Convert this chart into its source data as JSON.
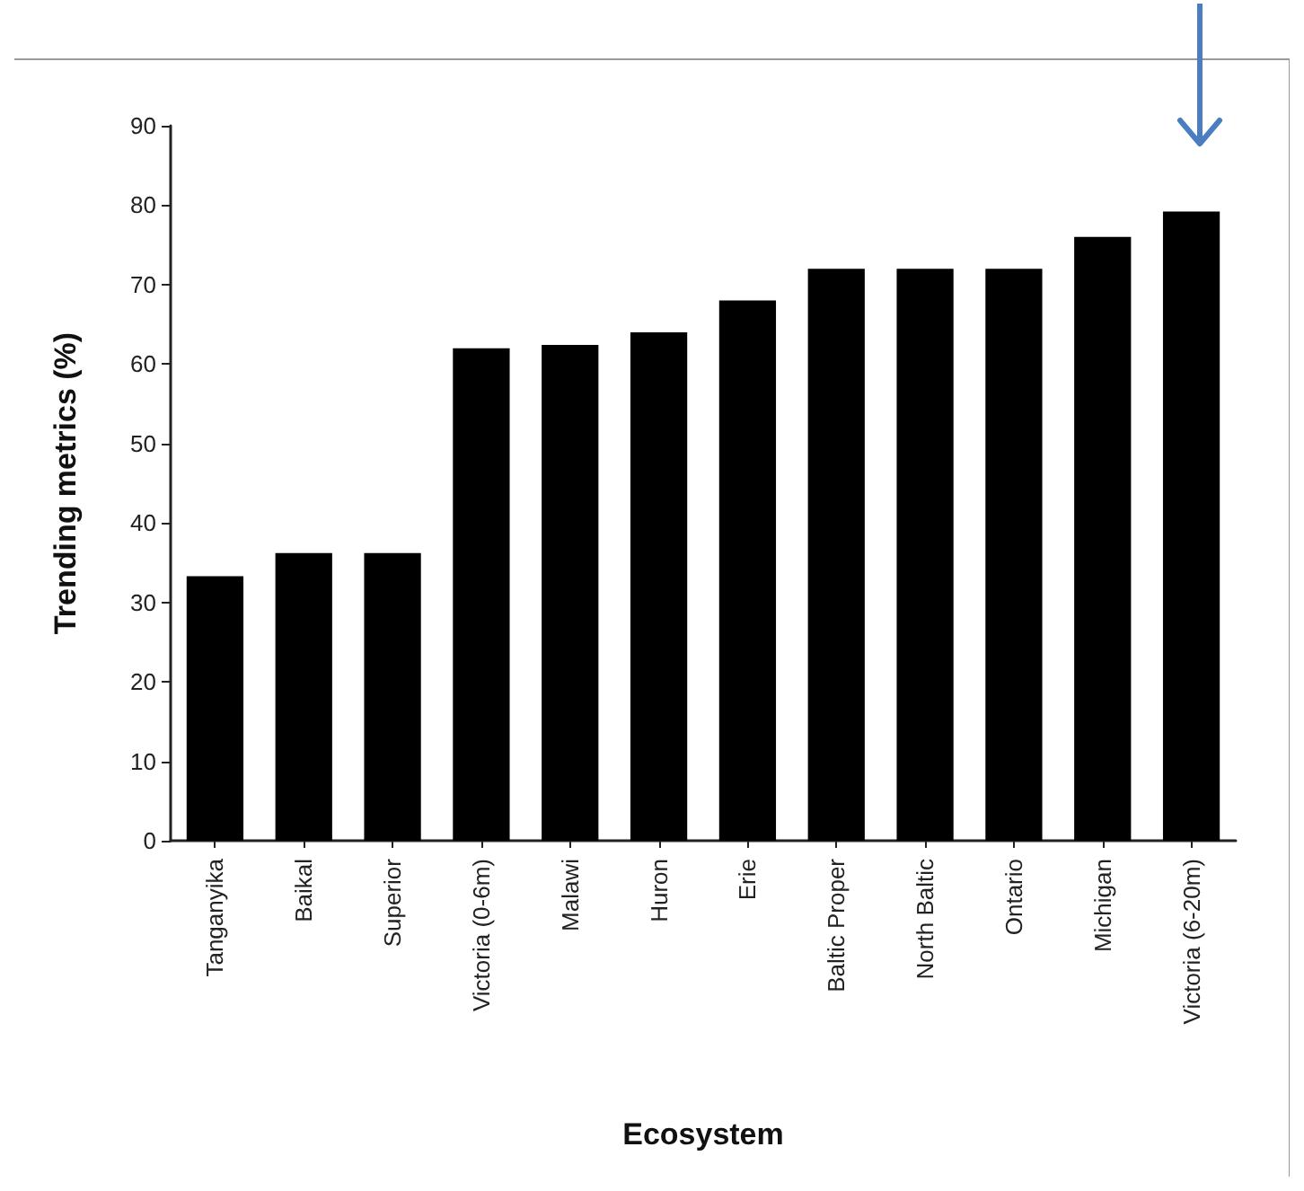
{
  "chart_data": {
    "type": "bar",
    "xlabel": "Ecosystem",
    "ylabel": "Trending metrics (%)",
    "categories": [
      "Tanganyika",
      "Baikal",
      "Superior",
      "Victoria (0-6m)",
      "Malawi",
      "Huron",
      "Erie",
      "Baltic Proper",
      "North Baltic",
      "Ontario",
      "Michigan",
      "Victoria (6-20m)"
    ],
    "values": [
      33.3,
      36.2,
      36.2,
      62,
      62.4,
      64,
      68,
      72,
      72,
      72,
      76,
      79.2
    ],
    "color": "#000000",
    "ylim": [
      0,
      90
    ],
    "yticks": [
      0,
      10,
      20,
      30,
      40,
      50,
      60,
      70,
      80,
      90
    ],
    "grid": false
  }
}
